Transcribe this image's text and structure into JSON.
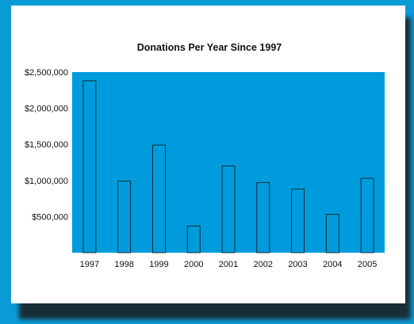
{
  "colors": {
    "background": "#0a9bd6",
    "plot_area": "#009bdc",
    "bar_fill": "#009bdc",
    "bar_stroke": "#111111"
  },
  "chart_data": {
    "type": "bar",
    "title": "Donations Per Year Since 1997",
    "xlabel": "",
    "ylabel": "",
    "categories": [
      "1997",
      "1998",
      "1999",
      "2000",
      "2001",
      "2002",
      "2003",
      "2004",
      "2005"
    ],
    "values": [
      2380000,
      990000,
      1490000,
      370000,
      1200000,
      970000,
      880000,
      530000,
      1030000
    ],
    "ylim": [
      0,
      2500000
    ],
    "yticks": [
      500000,
      1000000,
      1500000,
      2000000,
      2500000
    ],
    "ytick_labels": [
      "$500,000",
      "$1,000,000",
      "$1,500,000",
      "$2,000,000",
      "$2,500,000"
    ],
    "grid": false,
    "legend": "none"
  }
}
